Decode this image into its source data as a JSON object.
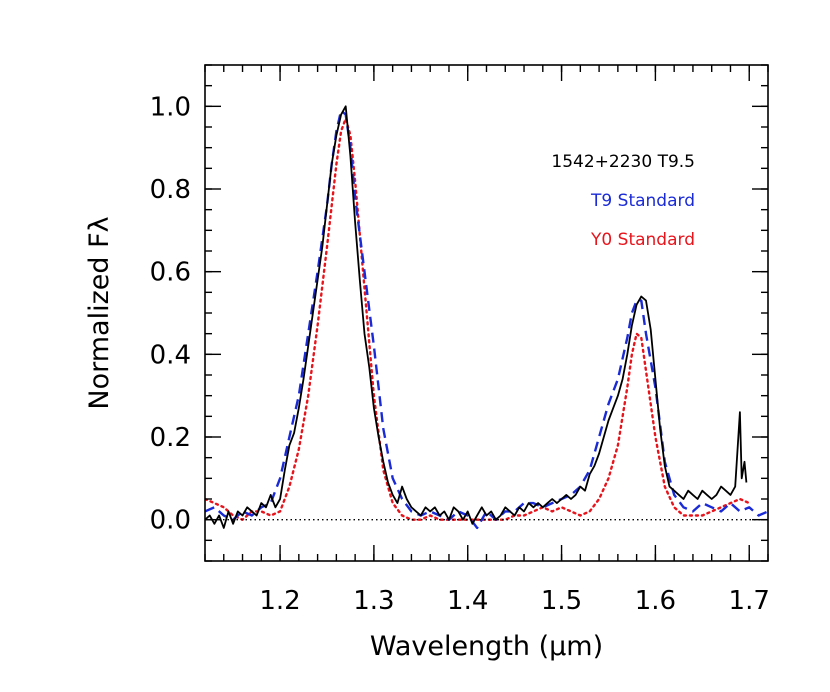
{
  "chart_data": {
    "type": "line",
    "title": "",
    "xlabel": "Wavelength (μm)",
    "ylabel": "Normalized Fλ",
    "xlim": [
      1.12,
      1.72
    ],
    "ylim": [
      -0.1,
      1.1
    ],
    "x_ticks": [
      "1.2",
      "1.3",
      "1.4",
      "1.5",
      "1.6",
      "1.7"
    ],
    "y_ticks": [
      "0.0",
      "0.2",
      "0.4",
      "0.6",
      "0.8",
      "1.0"
    ],
    "grid": false,
    "zero_line": true,
    "legend_position": "top-right",
    "series": [
      {
        "name": "1542+2230 T9.5",
        "color": "#000000",
        "style": "solid",
        "x": [
          1.12,
          1.125,
          1.13,
          1.135,
          1.14,
          1.145,
          1.15,
          1.155,
          1.16,
          1.165,
          1.17,
          1.175,
          1.18,
          1.185,
          1.19,
          1.195,
          1.2,
          1.205,
          1.21,
          1.215,
          1.22,
          1.225,
          1.23,
          1.235,
          1.24,
          1.245,
          1.25,
          1.255,
          1.26,
          1.265,
          1.27,
          1.275,
          1.28,
          1.285,
          1.29,
          1.295,
          1.3,
          1.305,
          1.31,
          1.315,
          1.32,
          1.325,
          1.33,
          1.335,
          1.34,
          1.345,
          1.35,
          1.355,
          1.36,
          1.365,
          1.37,
          1.375,
          1.38,
          1.385,
          1.39,
          1.395,
          1.4,
          1.405,
          1.41,
          1.415,
          1.42,
          1.425,
          1.43,
          1.435,
          1.44,
          1.445,
          1.45,
          1.455,
          1.46,
          1.465,
          1.47,
          1.475,
          1.48,
          1.485,
          1.49,
          1.495,
          1.5,
          1.505,
          1.51,
          1.515,
          1.52,
          1.525,
          1.53,
          1.535,
          1.54,
          1.545,
          1.55,
          1.555,
          1.56,
          1.565,
          1.57,
          1.575,
          1.58,
          1.585,
          1.59,
          1.595,
          1.6,
          1.605,
          1.61,
          1.615,
          1.62,
          1.625,
          1.63,
          1.635,
          1.64,
          1.645,
          1.65,
          1.655,
          1.66,
          1.665,
          1.67,
          1.675,
          1.68,
          1.685,
          1.69,
          1.692,
          1.695,
          1.697
        ],
        "y": [
          0.0,
          0.01,
          -0.01,
          0.01,
          -0.02,
          0.02,
          -0.01,
          0.02,
          0.01,
          0.03,
          0.02,
          0.01,
          0.04,
          0.03,
          0.06,
          0.03,
          0.05,
          0.12,
          0.18,
          0.21,
          0.27,
          0.34,
          0.42,
          0.5,
          0.58,
          0.66,
          0.76,
          0.86,
          0.93,
          0.98,
          1.0,
          0.88,
          0.72,
          0.58,
          0.45,
          0.37,
          0.27,
          0.2,
          0.14,
          0.09,
          0.06,
          0.04,
          0.08,
          0.05,
          0.03,
          0.02,
          0.01,
          0.03,
          0.02,
          0.03,
          0.01,
          0.02,
          0.0,
          0.03,
          0.02,
          0.0,
          0.02,
          -0.01,
          0.01,
          0.03,
          0.01,
          0.02,
          0.0,
          0.01,
          0.03,
          0.02,
          0.01,
          0.03,
          0.02,
          0.04,
          0.03,
          0.04,
          0.03,
          0.04,
          0.05,
          0.04,
          0.05,
          0.06,
          0.05,
          0.06,
          0.08,
          0.07,
          0.11,
          0.13,
          0.16,
          0.2,
          0.24,
          0.27,
          0.3,
          0.34,
          0.4,
          0.47,
          0.52,
          0.54,
          0.53,
          0.46,
          0.34,
          0.22,
          0.13,
          0.08,
          0.07,
          0.06,
          0.05,
          0.07,
          0.06,
          0.05,
          0.07,
          0.06,
          0.05,
          0.06,
          0.08,
          0.07,
          0.06,
          0.08,
          0.26,
          0.1,
          0.14,
          0.09
        ]
      },
      {
        "name": "T9 Standard",
        "color": "#1a2bd6",
        "style": "dashed",
        "x": [
          1.12,
          1.13,
          1.14,
          1.15,
          1.16,
          1.17,
          1.18,
          1.19,
          1.2,
          1.21,
          1.22,
          1.23,
          1.24,
          1.25,
          1.255,
          1.26,
          1.265,
          1.27,
          1.275,
          1.28,
          1.29,
          1.3,
          1.31,
          1.32,
          1.33,
          1.34,
          1.35,
          1.36,
          1.37,
          1.38,
          1.39,
          1.4,
          1.41,
          1.42,
          1.43,
          1.44,
          1.45,
          1.46,
          1.47,
          1.48,
          1.49,
          1.5,
          1.51,
          1.52,
          1.53,
          1.54,
          1.55,
          1.56,
          1.57,
          1.575,
          1.58,
          1.585,
          1.59,
          1.6,
          1.61,
          1.62,
          1.63,
          1.64,
          1.65,
          1.66,
          1.67,
          1.68,
          1.69,
          1.7,
          1.71,
          1.72
        ],
        "y": [
          0.02,
          0.03,
          0.01,
          0.0,
          0.02,
          0.01,
          0.03,
          0.04,
          0.1,
          0.2,
          0.3,
          0.45,
          0.6,
          0.76,
          0.86,
          0.94,
          0.99,
          0.98,
          0.9,
          0.78,
          0.6,
          0.42,
          0.22,
          0.1,
          0.05,
          0.02,
          0.01,
          0.02,
          0.01,
          0.0,
          0.02,
          0.01,
          -0.02,
          0.02,
          0.0,
          0.02,
          0.02,
          0.04,
          0.04,
          0.03,
          0.04,
          0.05,
          0.06,
          0.08,
          0.12,
          0.2,
          0.28,
          0.34,
          0.44,
          0.5,
          0.53,
          0.53,
          0.45,
          0.32,
          0.14,
          0.06,
          0.03,
          0.02,
          0.04,
          0.03,
          0.02,
          0.04,
          0.02,
          0.03,
          0.01,
          0.02
        ]
      },
      {
        "name": "Y0 Standard",
        "color": "#e8141c",
        "style": "dotted",
        "x": [
          1.12,
          1.13,
          1.14,
          1.15,
          1.16,
          1.17,
          1.18,
          1.19,
          1.2,
          1.21,
          1.22,
          1.23,
          1.24,
          1.25,
          1.26,
          1.265,
          1.27,
          1.275,
          1.28,
          1.29,
          1.3,
          1.31,
          1.32,
          1.33,
          1.34,
          1.35,
          1.36,
          1.37,
          1.38,
          1.39,
          1.4,
          1.41,
          1.42,
          1.43,
          1.44,
          1.45,
          1.46,
          1.47,
          1.48,
          1.49,
          1.5,
          1.51,
          1.52,
          1.53,
          1.54,
          1.55,
          1.56,
          1.57,
          1.575,
          1.58,
          1.585,
          1.59,
          1.6,
          1.61,
          1.62,
          1.63,
          1.64,
          1.65,
          1.66,
          1.67,
          1.68,
          1.69,
          1.7
        ],
        "y": [
          0.05,
          0.04,
          0.03,
          0.01,
          0.0,
          0.02,
          0.02,
          0.01,
          0.02,
          0.08,
          0.17,
          0.3,
          0.47,
          0.66,
          0.86,
          0.94,
          0.97,
          0.93,
          0.82,
          0.56,
          0.3,
          0.12,
          0.04,
          0.01,
          0.0,
          0.0,
          0.01,
          0.0,
          0.0,
          0.0,
          0.0,
          0.0,
          0.0,
          0.0,
          0.0,
          0.01,
          0.01,
          0.02,
          0.03,
          0.02,
          0.03,
          0.02,
          0.01,
          0.02,
          0.05,
          0.1,
          0.18,
          0.32,
          0.4,
          0.45,
          0.44,
          0.36,
          0.2,
          0.08,
          0.03,
          0.01,
          0.01,
          0.01,
          0.02,
          0.03,
          0.04,
          0.05,
          0.04
        ]
      }
    ]
  }
}
